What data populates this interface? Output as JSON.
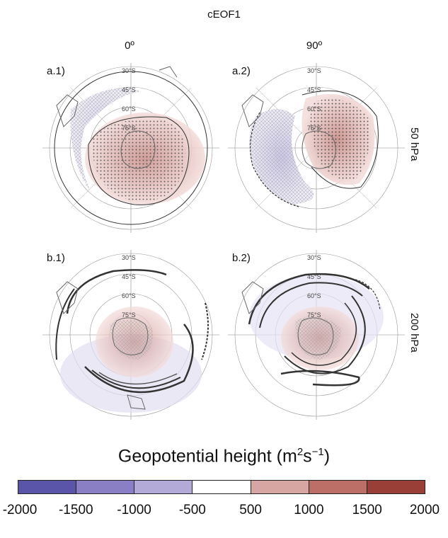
{
  "figure": {
    "title": "cEOF1",
    "columns": [
      "0º",
      "90º"
    ],
    "rows": [
      "50 hPa",
      "200 hPa"
    ]
  },
  "panels": [
    {
      "label": "a.1)",
      "phase": "0º",
      "level": "50 hPa"
    },
    {
      "label": "a.2)",
      "phase": "90º",
      "level": "50 hPa"
    },
    {
      "label": "b.1)",
      "phase": "0º",
      "level": "200 hPa"
    },
    {
      "label": "b.2)",
      "phase": "90º",
      "level": "200 hPa"
    }
  ],
  "latitude_labels": [
    "30°S",
    "45°S",
    "60°S",
    "75°S"
  ],
  "colorbar": {
    "title_main": "Geopotential height (m",
    "title_sup1": "2",
    "title_mid": "s",
    "title_sup2": "−1",
    "title_end": ")",
    "ticks": [
      "-2000",
      "-1500",
      "-1000",
      "-500",
      "500",
      "1000",
      "1500",
      "2000"
    ],
    "colors": [
      "#5a55a8",
      "#8a7fc4",
      "#b4aad8",
      "#ffffff",
      "#d8a6a2",
      "#bc6f66",
      "#9a3e38"
    ]
  }
}
